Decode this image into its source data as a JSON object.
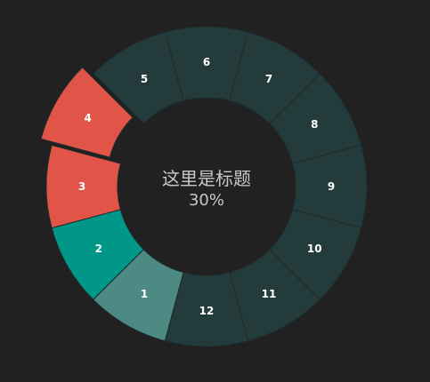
{
  "chart_data": {
    "type": "pie",
    "variant": "donut",
    "center_title": "这里是标题",
    "center_value": "30%",
    "categories": [
      "1",
      "2",
      "3",
      "4",
      "5",
      "6",
      "7",
      "8",
      "9",
      "10",
      "11",
      "12"
    ],
    "values": [
      1,
      1,
      1,
      1,
      1,
      1,
      1,
      1,
      1,
      1,
      1,
      1
    ],
    "highlighted": "4",
    "colors": {
      "1": "#4d8a83",
      "2": "#009688",
      "3": "#e05548",
      "4": "#e05548",
      "5": "#243b3b",
      "6": "#243b3b",
      "7": "#243b3b",
      "8": "#243b3b",
      "9": "#243b3b",
      "10": "#243b3b",
      "11": "#243b3b",
      "12": "#243b3b"
    },
    "background": "#212121",
    "segment_border_color": "#1e2a2a"
  }
}
